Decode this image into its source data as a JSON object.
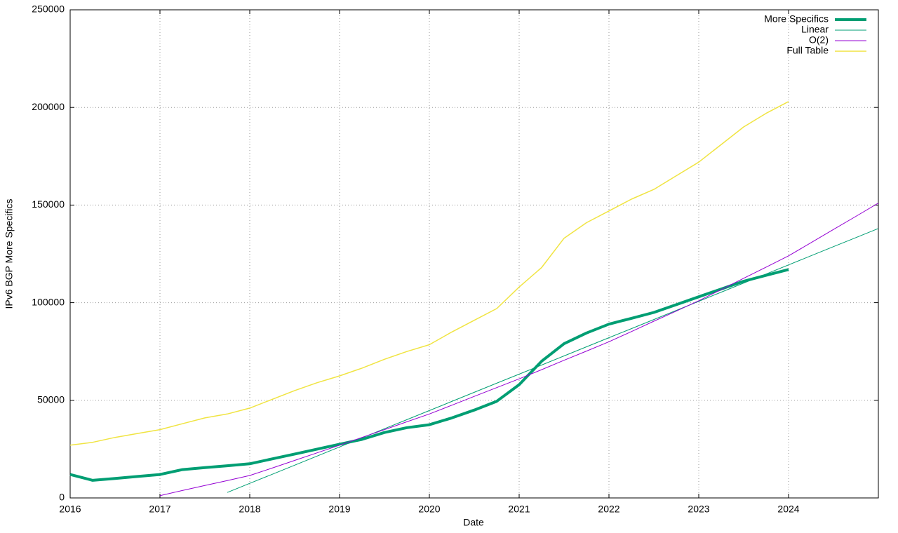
{
  "chart_data": {
    "type": "line",
    "x_label": "Date",
    "y_label": "IPv6 BGP More Specifics",
    "x": [
      2016,
      2016.25,
      2016.5,
      2016.75,
      2017,
      2017.25,
      2017.5,
      2017.75,
      2018,
      2018.25,
      2018.5,
      2018.75,
      2019,
      2019.25,
      2019.5,
      2019.75,
      2020,
      2020.25,
      2020.5,
      2020.75,
      2021,
      2021.25,
      2021.5,
      2021.75,
      2022,
      2022.25,
      2022.5,
      2022.75,
      2023,
      2023.25,
      2023.5,
      2023.75,
      2024,
      2024.25,
      2024.5,
      2024.75,
      2025
    ],
    "series": [
      {
        "name": "More Specifics",
        "color": "#009e73",
        "width": 4,
        "values": [
          12000,
          9000,
          10000,
          11000,
          12000,
          14500,
          15500,
          16500,
          17500,
          20000,
          22500,
          25000,
          27500,
          30000,
          33500,
          36000,
          37500,
          41000,
          45000,
          49500,
          58000,
          70000,
          79000,
          84500,
          89000,
          92000,
          95000,
          99000,
          103000,
          107000,
          111000,
          114000,
          117000,
          null,
          null,
          null,
          null
        ]
      },
      {
        "name": "Linear",
        "color": "#009e73",
        "width": 1,
        "values": [
          null,
          null,
          null,
          null,
          null,
          null,
          null,
          2800,
          7460,
          12120,
          16790,
          21450,
          26110,
          30770,
          35440,
          40100,
          44760,
          49420,
          54090,
          58750,
          63410,
          68070,
          72740,
          77400,
          82060,
          86720,
          91390,
          96050,
          100710,
          105370,
          110040,
          114700,
          119360,
          124020,
          128690,
          133350,
          138010
        ]
      },
      {
        "name": "O(2)",
        "color": "#9400d3",
        "width": 1,
        "values": [
          null,
          null,
          null,
          null,
          1200,
          3800,
          6400,
          8900,
          11500,
          15300,
          19200,
          23100,
          27000,
          31000,
          35000,
          39000,
          43000,
          47500,
          52000,
          56500,
          61000,
          65700,
          70500,
          75200,
          80000,
          85200,
          90500,
          95700,
          101000,
          106700,
          112500,
          118200,
          124000,
          130700,
          137500,
          144200,
          151000
        ]
      },
      {
        "name": "Full Table",
        "color": "#f0e442",
        "width": 1.5,
        "values": [
          27000,
          28500,
          31000,
          33000,
          35000,
          38000,
          41000,
          43000,
          46000,
          50500,
          55000,
          59000,
          62500,
          66500,
          71000,
          75000,
          78500,
          85000,
          91000,
          97000,
          108000,
          118000,
          133000,
          141000,
          147000,
          153000,
          158000,
          165000,
          172000,
          181000,
          190000,
          197000,
          203000,
          null,
          null,
          null,
          null
        ]
      }
    ],
    "xlim": [
      2016,
      2025
    ],
    "xticks": [
      2016,
      2017,
      2018,
      2019,
      2020,
      2021,
      2022,
      2023,
      2024
    ],
    "ylim": [
      0,
      250000
    ],
    "yticks": [
      0,
      50000,
      100000,
      150000,
      200000,
      250000
    ],
    "grid": true,
    "legend": "top-right"
  }
}
